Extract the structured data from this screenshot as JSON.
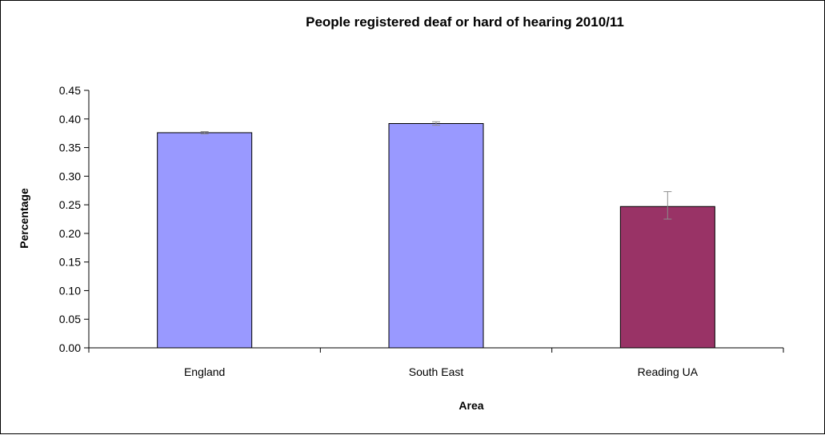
{
  "chart_data": {
    "type": "bar",
    "title": "People registered deaf or hard of hearing 2010/11",
    "xlabel": "Area",
    "ylabel": "Percentage",
    "categories": [
      "England",
      "South East",
      "Reading UA"
    ],
    "values": [
      0.376,
      0.392,
      0.247
    ],
    "error_low": [
      0.374,
      0.389,
      0.225
    ],
    "error_high": [
      0.378,
      0.395,
      0.273
    ],
    "bar_colors": [
      "#9999ff",
      "#9999ff",
      "#993366"
    ],
    "ylim": [
      0,
      0.45
    ],
    "yticks": [
      "0.00",
      "0.05",
      "0.10",
      "0.15",
      "0.20",
      "0.25",
      "0.30",
      "0.35",
      "0.40",
      "0.45"
    ],
    "grid": false,
    "legend": "none"
  }
}
